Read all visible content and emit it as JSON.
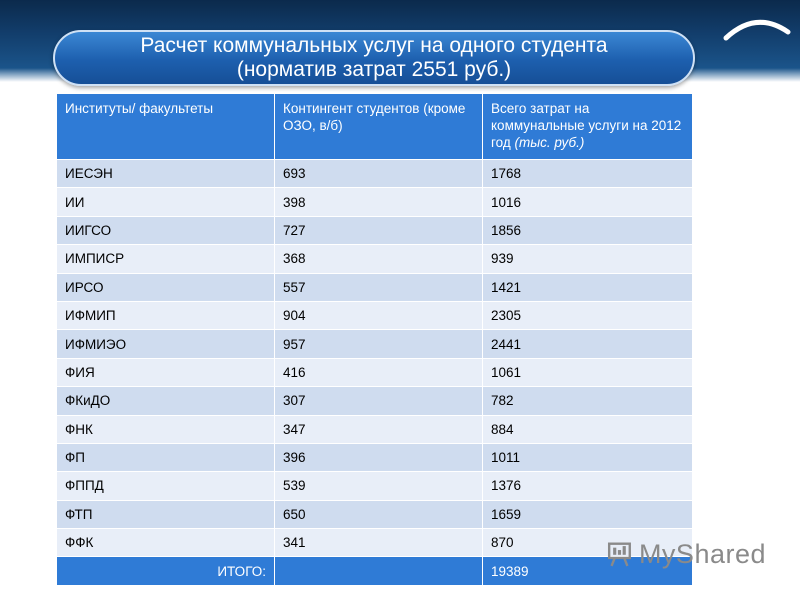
{
  "title": {
    "line1": "Расчет коммунальных услуг на одного студента",
    "line2": "(норматив затрат 2551 руб.)"
  },
  "table": {
    "headers": [
      "Институты/ факультеты",
      "Контингент студентов (кроме ОЗО, в/б)",
      "Всего затрат на коммунальные услуги на 2012 год",
      "(тыс. руб.)"
    ],
    "rows": [
      [
        "ИЕСЭН",
        "693",
        "1768"
      ],
      [
        "ИИ",
        "398",
        "1016"
      ],
      [
        "ИИГСО",
        "727",
        "1856"
      ],
      [
        "ИМПИСР",
        "368",
        "939"
      ],
      [
        "ИРСО",
        "557",
        "1421"
      ],
      [
        "ИФМИП",
        "904",
        "2305"
      ],
      [
        "ИФМИЭО",
        "957",
        "2441"
      ],
      [
        "ФИЯ",
        "416",
        "1061"
      ],
      [
        "ФКиДО",
        "307",
        "782"
      ],
      [
        "ФНК",
        "347",
        "884"
      ],
      [
        "ФП",
        "396",
        "1011"
      ],
      [
        "ФППД",
        "539",
        "1376"
      ],
      [
        "ФТП",
        "650",
        "1659"
      ],
      [
        "ФФК",
        "341",
        "870"
      ]
    ],
    "total_label": "ИТОГО:",
    "total_value": "19389"
  },
  "watermark": {
    "text": "MyShared",
    "icon": "presentation-board-icon"
  },
  "colors": {
    "header_bg": "#2f7bd6",
    "row_odd": "#cfdcef",
    "row_even": "#e8eef8",
    "banner_dark": "#0b2a4c",
    "pill": "#1d5fae"
  }
}
